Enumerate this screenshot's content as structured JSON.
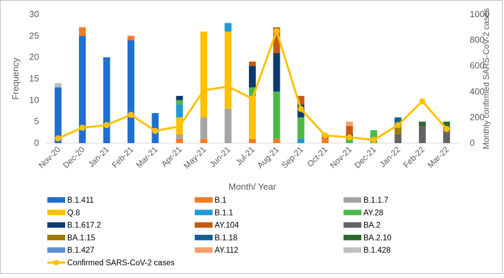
{
  "chart_data": {
    "type": "bar",
    "stacked": true,
    "categories": [
      "Nov-20",
      "Dec-20",
      "Jan-21",
      "Feb-21",
      "Mar-21",
      "Apr-21",
      "May-21",
      "Jun-21",
      "Jul-21",
      "Aug-21",
      "Sep-21",
      "Oct-21",
      "Nov-21",
      "Dec-21",
      "Jan-22",
      "Feb-22",
      "Mar-22"
    ],
    "xlabel": "Month/ Year",
    "ylabel": "Frequency",
    "y2label": "Monthly confirmed SARS-CoV-2 cases",
    "ylim": [
      0,
      30
    ],
    "yticks": [
      0,
      5,
      10,
      15,
      20,
      25,
      30
    ],
    "y2lim": [
      0,
      1000
    ],
    "y2ticks": [
      0,
      200,
      400,
      600,
      800,
      1000
    ],
    "grid": false,
    "legend": "bottom",
    "series": [
      {
        "name": "B.1.411",
        "color": "#1f6fd1",
        "values": [
          13,
          25,
          20,
          24,
          7,
          0,
          0,
          0,
          0,
          0,
          0,
          0,
          0,
          0,
          0,
          0,
          0
        ]
      },
      {
        "name": "B.1",
        "color": "#f47b20",
        "values": [
          0,
          2,
          0,
          1,
          0,
          1,
          1,
          0,
          1,
          1,
          0,
          1,
          0,
          0,
          0,
          0,
          0
        ]
      },
      {
        "name": "B.1.1.7",
        "color": "#a5a5a5",
        "values": [
          0,
          0,
          0,
          0,
          0,
          1,
          5,
          8,
          0,
          0,
          0,
          0,
          0,
          0,
          0,
          0,
          0
        ]
      },
      {
        "name": "Q.8",
        "color": "#ffc000",
        "values": [
          0,
          0,
          0,
          0,
          0,
          4,
          20,
          18,
          10,
          0,
          0,
          0,
          0,
          0,
          0,
          0,
          0
        ]
      },
      {
        "name": "B.1.1",
        "color": "#1e9ad6",
        "values": [
          0,
          0,
          0,
          0,
          0,
          3,
          0,
          2,
          0,
          0,
          1,
          0,
          0,
          0,
          0,
          0,
          0
        ]
      },
      {
        "name": "AY.28",
        "color": "#4cb847",
        "values": [
          0,
          0,
          0,
          0,
          0,
          1,
          0,
          0,
          2,
          11,
          5,
          0,
          1,
          3,
          0,
          0,
          0
        ]
      },
      {
        "name": "B.1.617.2",
        "color": "#0e3a70",
        "values": [
          0,
          0,
          0,
          0,
          0,
          1,
          0,
          0,
          5,
          9,
          3,
          0,
          1,
          0,
          0,
          0,
          0
        ]
      },
      {
        "name": "AY.104",
        "color": "#c55a11",
        "values": [
          0,
          0,
          0,
          0,
          0,
          0,
          0,
          0,
          1,
          6,
          2,
          1,
          2,
          0,
          0,
          0,
          0
        ]
      },
      {
        "name": "BA.2",
        "color": "#636363",
        "values": [
          0,
          0,
          0,
          0,
          0,
          0,
          0,
          0,
          0,
          0,
          0,
          0,
          0,
          0,
          2,
          4,
          4
        ]
      },
      {
        "name": "BA.1.15",
        "color": "#9e7a0b",
        "values": [
          0,
          0,
          0,
          0,
          0,
          0,
          0,
          0,
          0,
          0,
          0,
          0,
          0,
          0,
          2,
          0,
          0
        ]
      },
      {
        "name": "B.1.18",
        "color": "#155e91",
        "values": [
          0,
          0,
          0,
          0,
          0,
          0,
          0,
          0,
          0,
          0,
          0,
          0,
          0,
          0,
          2,
          0,
          0
        ]
      },
      {
        "name": "BA.2.10",
        "color": "#2d6a2d",
        "values": [
          0,
          0,
          0,
          0,
          0,
          0,
          0,
          0,
          0,
          0,
          0,
          0,
          0,
          0,
          0,
          1,
          1
        ]
      },
      {
        "name": "B.1.427",
        "color": "#5b8fd6",
        "values": [
          0,
          0,
          0,
          0,
          0,
          0,
          0,
          0,
          0,
          0,
          0,
          0,
          0,
          0,
          0,
          0,
          0
        ]
      },
      {
        "name": "AY.112",
        "color": "#f4a06a",
        "values": [
          0,
          0,
          0,
          0,
          0,
          0,
          0,
          0,
          0,
          0,
          0,
          0,
          1,
          0,
          0,
          0,
          0
        ]
      },
      {
        "name": "B.1.428",
        "color": "#c0c0c0",
        "values": [
          1,
          0,
          0,
          0,
          0,
          0,
          0,
          0,
          0,
          0,
          0,
          0,
          0,
          0,
          0,
          0,
          0
        ]
      }
    ],
    "line": {
      "name": "Confirmed SARS-CoV-2 cases",
      "color": "#ffc000",
      "axis": "right",
      "values": [
        37,
        120,
        140,
        220,
        95,
        130,
        410,
        440,
        345,
        870,
        265,
        60,
        45,
        25,
        140,
        325,
        110
      ]
    }
  }
}
